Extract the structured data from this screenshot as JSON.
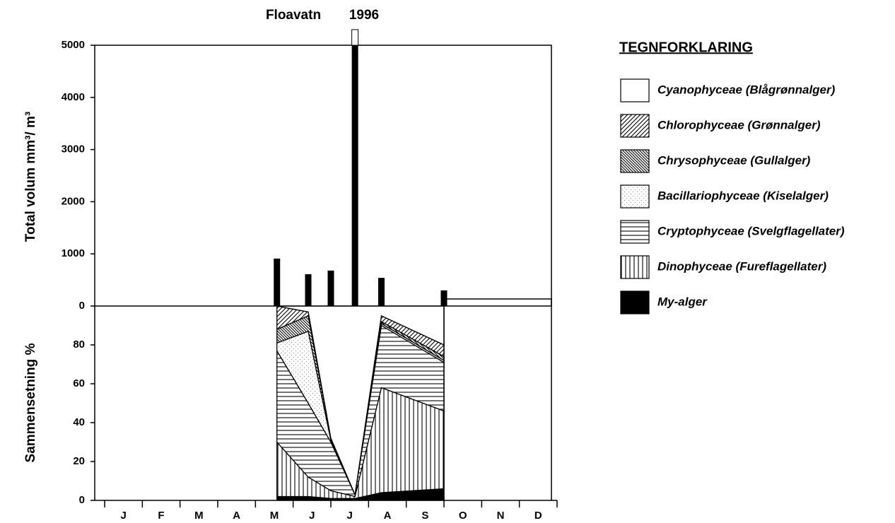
{
  "chart_data": [
    {
      "type": "bar",
      "title": "Floavatn",
      "subtitle": "1996",
      "ylabel": "Total volum mm³/ m³",
      "x": [
        4.57,
        5.4,
        6.0,
        6.64,
        7.34,
        9.0
      ],
      "values": [
        910,
        610,
        680,
        5300,
        540,
        300
      ],
      "color": "#000000",
      "xlim": [
        0,
        12
      ],
      "ylim": [
        0,
        5000
      ],
      "yticks": [
        0,
        1000,
        2000,
        3000,
        4000,
        5000
      ]
    },
    {
      "type": "stacked-area",
      "ylabel": "Sammensetning %",
      "categories": [
        "J",
        "F",
        "M",
        "A",
        "M",
        "J",
        "J",
        "A",
        "S",
        "O",
        "N",
        "D"
      ],
      "x": [
        4.57,
        5.4,
        6.0,
        6.64,
        7.34,
        9.0
      ],
      "xlim": [
        0,
        12
      ],
      "ylim": [
        0,
        100
      ],
      "yticks": [
        0,
        20,
        40,
        60,
        80
      ],
      "legend": {
        "title": "TEGNFORKLARING"
      },
      "series": [
        {
          "name": "My-alger",
          "color": "#000000",
          "pattern": "solid",
          "values": [
            2,
            2,
            1,
            1,
            4,
            6
          ]
        },
        {
          "name": "Dinophyceae (Fureflagellater)",
          "color": "#000000",
          "pattern": "vertical",
          "values": [
            28,
            10,
            4,
            1,
            54,
            40
          ]
        },
        {
          "name": "Cryptophyceae (Svelgflagellater)",
          "color": "#000000",
          "pattern": "horizontal",
          "values": [
            47,
            38,
            25,
            1,
            32,
            25
          ]
        },
        {
          "name": "Bacillariophyceae (Kiselalger)",
          "color": "#8a8a8a",
          "pattern": "dots",
          "values": [
            4,
            37,
            1,
            0,
            1,
            1
          ]
        },
        {
          "name": "Chrysophyceae (Gullalger)",
          "color": "#000000",
          "pattern": "hatch-left",
          "values": [
            7,
            8,
            1,
            0,
            1,
            2
          ]
        },
        {
          "name": "Chlorophyceae (Grønnalger)",
          "color": "#000000",
          "pattern": "hatch-right",
          "values": [
            12,
            2,
            0,
            0,
            3,
            6
          ]
        },
        {
          "name": "Cyanophyceae (Blågrønnalger)",
          "color": "#ffffff",
          "pattern": "solid",
          "values": [
            0,
            3,
            68,
            97,
            5,
            20
          ]
        }
      ]
    }
  ]
}
